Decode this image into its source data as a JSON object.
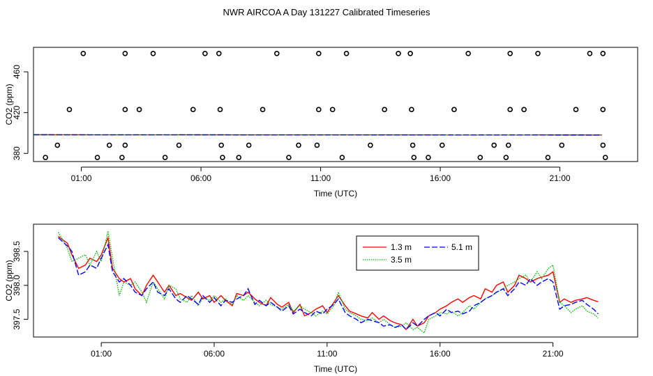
{
  "title": "NWR AIRCOA A  Day 131227  Calibrated Timeseries",
  "colors": {
    "1.3 m": "#ff0000",
    "3.5 m": "#00bb00",
    "5.1 m": "#0000ff"
  },
  "chart_data": [
    {
      "type": "scatter",
      "xlabel": "Time (UTC)",
      "ylabel": "CO2 (ppm)",
      "xlim": [
        -1.0,
        24.25
      ],
      "ylim": [
        372.0,
        484.0
      ],
      "x_ticks": [
        1,
        6,
        11,
        16,
        21
      ],
      "x_tick_labels": [
        "01:00",
        "06:00",
        "11:00",
        "16:00",
        "21:00"
      ],
      "y_ticks": [
        380,
        420,
        460
      ],
      "y_tick_labels": [
        "380",
        "420",
        "460"
      ],
      "grid": false,
      "points": [
        {
          "x": 1.08,
          "y": 478
        },
        {
          "x": 2.83,
          "y": 478
        },
        {
          "x": 4.0,
          "y": 478
        },
        {
          "x": 6.17,
          "y": 478
        },
        {
          "x": 6.75,
          "y": 478
        },
        {
          "x": 9.17,
          "y": 478
        },
        {
          "x": 10.92,
          "y": 478
        },
        {
          "x": 12.08,
          "y": 478
        },
        {
          "x": 14.25,
          "y": 478
        },
        {
          "x": 14.75,
          "y": 478
        },
        {
          "x": 17.17,
          "y": 478
        },
        {
          "x": 18.92,
          "y": 478
        },
        {
          "x": 20.08,
          "y": 478
        },
        {
          "x": 22.25,
          "y": 478
        },
        {
          "x": 22.8,
          "y": 478
        },
        {
          "x": 0.5,
          "y": 423
        },
        {
          "x": 2.83,
          "y": 423
        },
        {
          "x": 3.42,
          "y": 423
        },
        {
          "x": 5.67,
          "y": 423
        },
        {
          "x": 6.8,
          "y": 423
        },
        {
          "x": 8.58,
          "y": 423
        },
        {
          "x": 10.92,
          "y": 423
        },
        {
          "x": 11.5,
          "y": 423
        },
        {
          "x": 13.67,
          "y": 423
        },
        {
          "x": 14.8,
          "y": 423
        },
        {
          "x": 16.58,
          "y": 423
        },
        {
          "x": 18.92,
          "y": 423
        },
        {
          "x": 19.5,
          "y": 423
        },
        {
          "x": 21.67,
          "y": 423
        },
        {
          "x": 22.8,
          "y": 423
        },
        {
          "x": 0.0,
          "y": 388
        },
        {
          "x": 2.17,
          "y": 388
        },
        {
          "x": 2.83,
          "y": 388
        },
        {
          "x": 5.08,
          "y": 388
        },
        {
          "x": 6.85,
          "y": 388
        },
        {
          "x": 8.0,
          "y": 388
        },
        {
          "x": 10.08,
          "y": 388
        },
        {
          "x": 10.85,
          "y": 388
        },
        {
          "x": 13.08,
          "y": 388
        },
        {
          "x": 14.85,
          "y": 388
        },
        {
          "x": 16.08,
          "y": 388
        },
        {
          "x": 18.25,
          "y": 388
        },
        {
          "x": 18.85,
          "y": 388
        },
        {
          "x": 21.08,
          "y": 388
        },
        {
          "x": 22.8,
          "y": 388
        },
        {
          "x": -0.5,
          "y": 376
        },
        {
          "x": 1.67,
          "y": 376
        },
        {
          "x": 2.7,
          "y": 376
        },
        {
          "x": 4.5,
          "y": 376
        },
        {
          "x": 6.9,
          "y": 376
        },
        {
          "x": 7.58,
          "y": 376
        },
        {
          "x": 9.67,
          "y": 376
        },
        {
          "x": 11.9,
          "y": 376
        },
        {
          "x": 14.9,
          "y": 376
        },
        {
          "x": 15.5,
          "y": 376
        },
        {
          "x": 17.67,
          "y": 376
        },
        {
          "x": 18.75,
          "y": 376
        },
        {
          "x": 20.5,
          "y": 376
        },
        {
          "x": 22.9,
          "y": 376
        }
      ],
      "series": [
        {
          "name": "1.3 m",
          "x": [
            -1.0,
            22.75
          ],
          "values": [
            398.3,
            398.0
          ]
        },
        {
          "name": "3.5 m",
          "x": [
            -1.0,
            22.75
          ],
          "values": [
            398.3,
            398.0
          ]
        },
        {
          "name": "5.1 m",
          "x": [
            -1.0,
            22.75
          ],
          "values": [
            398.3,
            398.0
          ]
        }
      ]
    },
    {
      "type": "line",
      "xlabel": "Time (UTC)",
      "ylabel": "CO2 (ppm)",
      "xlim": [
        -2.0,
        24.75
      ],
      "ylim": [
        397.24,
        398.9
      ],
      "x_ticks": [
        1,
        6,
        11,
        16,
        21
      ],
      "x_tick_labels": [
        "01:00",
        "06:00",
        "11:00",
        "16:00",
        "21:00"
      ],
      "y_ticks": [
        397.5,
        398.0,
        398.5
      ],
      "y_tick_labels": [
        "397.5",
        "398.0",
        "398.5"
      ],
      "legend_position": "top-right",
      "grid": false,
      "x": [
        -0.9,
        -0.5,
        -0.3,
        0.0,
        0.3,
        0.5,
        0.8,
        1.0,
        1.3,
        1.5,
        1.8,
        2.0,
        2.3,
        2.5,
        2.8,
        3.0,
        3.3,
        3.5,
        3.8,
        4.0,
        4.3,
        4.5,
        4.8,
        5.0,
        5.3,
        5.5,
        5.8,
        6.0,
        6.3,
        6.5,
        6.8,
        7.0,
        7.3,
        7.5,
        7.8,
        8.0,
        8.3,
        8.5,
        8.8,
        9.0,
        9.3,
        9.5,
        9.8,
        10.0,
        10.3,
        10.5,
        10.8,
        11.0,
        11.3,
        11.5,
        11.8,
        12.0,
        12.3,
        12.5,
        12.8,
        13.0,
        13.3,
        13.5,
        13.8,
        14.0,
        14.3,
        14.5,
        14.8,
        15.0,
        15.3,
        15.5,
        15.8,
        16.0,
        16.3,
        16.5,
        16.8,
        17.0,
        17.3,
        17.5,
        17.8,
        18.0,
        18.3,
        18.5,
        18.8,
        19.0,
        19.3,
        19.5,
        19.8,
        20.0,
        20.3,
        20.5,
        20.8,
        21.0,
        21.3,
        21.5,
        21.8,
        22.0,
        22.3,
        22.5,
        22.8,
        23.0
      ],
      "series": [
        {
          "name": "1.3 m",
          "values": [
            398.72,
            398.62,
            398.45,
            398.25,
            398.3,
            398.4,
            398.35,
            398.45,
            398.7,
            398.25,
            398.1,
            398.05,
            398.1,
            397.95,
            397.85,
            398.0,
            398.15,
            398.05,
            397.9,
            398.0,
            397.85,
            397.88,
            397.82,
            397.78,
            397.9,
            397.8,
            397.85,
            397.75,
            397.85,
            397.78,
            397.7,
            397.88,
            397.85,
            397.9,
            397.8,
            397.75,
            397.7,
            397.82,
            397.72,
            397.68,
            397.75,
            397.6,
            397.72,
            397.55,
            397.6,
            397.65,
            397.7,
            397.6,
            397.75,
            397.85,
            397.7,
            397.62,
            397.58,
            397.55,
            397.52,
            397.6,
            397.5,
            397.55,
            397.48,
            397.45,
            397.42,
            397.35,
            397.5,
            397.4,
            397.45,
            397.55,
            397.6,
            397.65,
            397.7,
            397.75,
            397.8,
            397.75,
            397.82,
            397.85,
            397.8,
            397.95,
            397.9,
            398.0,
            398.05,
            397.9,
            398.0,
            398.15,
            398.1,
            398.05,
            398.1,
            398.12,
            398.15,
            398.2,
            397.75,
            397.8,
            397.75,
            397.78,
            397.8,
            397.82,
            397.78,
            397.76
          ]
        },
        {
          "name": "3.5 m",
          "values": [
            398.78,
            398.55,
            398.35,
            398.4,
            398.45,
            398.3,
            398.5,
            398.35,
            398.8,
            398.4,
            397.85,
            398.05,
            398.0,
            398.05,
            397.9,
            397.75,
            398.05,
            397.95,
            397.8,
            398.0,
            397.95,
            397.8,
            397.75,
            397.85,
            397.7,
            397.82,
            397.78,
            397.85,
            397.75,
            397.8,
            397.72,
            397.85,
            397.78,
            397.85,
            397.75,
            397.7,
            397.78,
            397.72,
            397.68,
            397.65,
            397.72,
            397.62,
            397.7,
            397.65,
            397.6,
            397.55,
            397.62,
            397.58,
            397.7,
            397.9,
            397.65,
            397.6,
            397.55,
            397.5,
            397.48,
            397.52,
            397.45,
            397.5,
            397.42,
            397.38,
            397.4,
            397.45,
            397.35,
            397.38,
            397.3,
            397.5,
            397.55,
            397.6,
            397.58,
            397.62,
            397.55,
            397.6,
            397.7,
            397.65,
            397.75,
            397.8,
            397.85,
            397.9,
            397.95,
            398.0,
            398.05,
            398.1,
            398.15,
            398.05,
            398.2,
            398.1,
            398.25,
            398.3,
            397.75,
            397.7,
            397.6,
            397.65,
            397.7,
            397.62,
            397.58,
            397.52
          ]
        },
        {
          "name": "5.1 m",
          "values": [
            398.7,
            398.58,
            398.5,
            398.15,
            398.2,
            398.3,
            398.25,
            398.4,
            398.6,
            398.2,
            398.05,
            398.1,
            398.0,
            397.9,
            397.85,
            397.95,
            398.05,
            397.9,
            397.85,
            397.95,
            397.8,
            397.75,
            397.85,
            397.8,
            397.72,
            397.85,
            397.75,
            397.82,
            397.7,
            397.78,
            397.75,
            397.8,
            397.85,
            397.95,
            397.72,
            397.78,
            397.7,
            397.75,
            397.68,
            397.62,
            397.7,
            397.58,
            397.65,
            397.6,
            397.55,
            397.62,
            397.58,
            397.65,
            397.72,
            397.8,
            397.6,
            397.55,
            397.5,
            397.45,
            397.5,
            397.48,
            397.45,
            397.4,
            397.42,
            397.38,
            397.42,
            397.35,
            397.45,
            397.4,
            397.5,
            397.55,
            397.6,
            397.55,
            397.65,
            397.6,
            397.62,
            397.58,
            397.62,
            397.7,
            397.75,
            397.8,
            397.85,
            397.9,
            397.95,
            397.85,
            397.95,
            398.05,
            398.0,
            398.1,
            398.0,
            398.05,
            398.1,
            398.05,
            397.65,
            397.7,
            397.72,
            397.75,
            397.78,
            397.72,
            397.65,
            397.58
          ]
        }
      ]
    }
  ]
}
